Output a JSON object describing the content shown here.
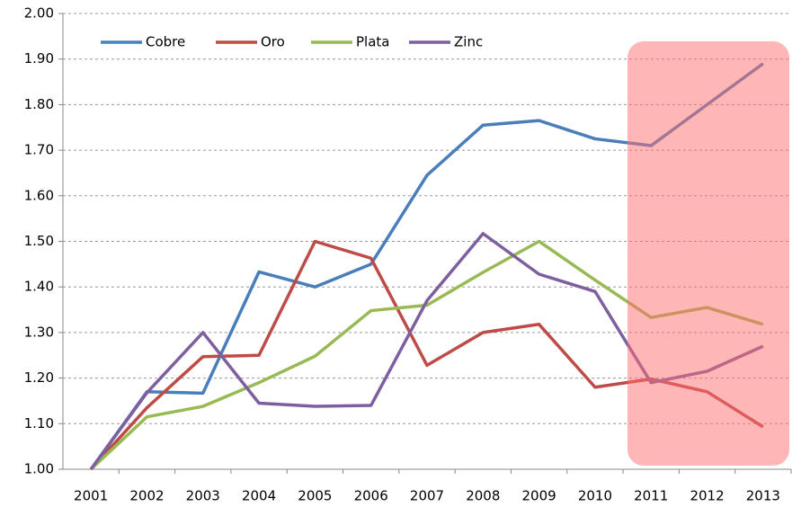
{
  "chart_data": {
    "type": "line",
    "categories": [
      "2001",
      "2002",
      "2003",
      "2004",
      "2005",
      "2006",
      "2007",
      "2008",
      "2009",
      "2010",
      "2011",
      "2012",
      "2013"
    ],
    "series": [
      {
        "name": "Cobre",
        "color": "#4a7ebb",
        "values": [
          1.0,
          1.17,
          1.167,
          1.433,
          1.4,
          1.45,
          1.645,
          1.755,
          1.765,
          1.725,
          1.71,
          1.8,
          1.89
        ]
      },
      {
        "name": "Oro",
        "color": "#be4b48",
        "values": [
          1.0,
          1.135,
          1.247,
          1.25,
          1.5,
          1.463,
          1.228,
          1.3,
          1.318,
          1.18,
          1.198,
          1.17,
          1.093
        ]
      },
      {
        "name": "Plata",
        "color": "#98b954",
        "values": [
          1.0,
          1.115,
          1.138,
          1.19,
          1.248,
          1.348,
          1.36,
          1.432,
          1.5,
          1.415,
          1.333,
          1.355,
          1.318
        ]
      },
      {
        "name": "Zinc",
        "color": "#7d5fa0",
        "values": [
          1.0,
          1.168,
          1.3,
          1.145,
          1.138,
          1.14,
          1.37,
          1.517,
          1.428,
          1.39,
          1.19,
          1.215,
          1.27
        ]
      }
    ],
    "ylim": [
      1,
      2
    ],
    "yticks": [
      {
        "value": 1,
        "label": "1.00"
      },
      {
        "value": 1.1,
        "label": "1.10"
      },
      {
        "value": 1.2,
        "label": "1.20"
      },
      {
        "value": 1.3,
        "label": "1.30"
      },
      {
        "value": 1.4,
        "label": "1.40"
      },
      {
        "value": 1.5,
        "label": "1.50"
      },
      {
        "value": 1.6,
        "label": "1.60"
      },
      {
        "value": 1.7,
        "label": "1.70"
      },
      {
        "value": 1.8,
        "label": "1.80"
      },
      {
        "value": 1.9,
        "label": "1.90"
      },
      {
        "value": 2,
        "label": "2.00"
      }
    ],
    "grid": true,
    "legend": "top-left"
  }
}
